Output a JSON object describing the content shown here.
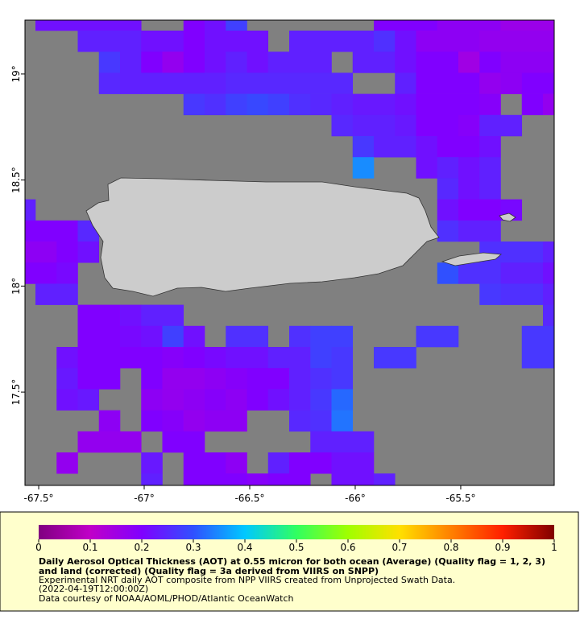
{
  "chart_data": {
    "type": "heatmap",
    "title": "Daily Aerosol Optical Thickness (AOT) at 0.55 micron for both ocean (Average) (Quality flag = 1, 2, 3) and land (corrected) (Quality flag = 3a derived from VIIRS on SNPP)",
    "notes": [
      "Experimental NRT daily AOT composite from NPP VIIRS created from Unprojected Swath Data.",
      "(2022-04-19T12:00:00Z)",
      "Data courtesy of NOAA/AOML/PHOD/Atlantic OceanWatch"
    ],
    "xlim": [
      -67.565,
      -65.057
    ],
    "ylim": [
      17.06,
      19.254
    ],
    "xticks": [
      {
        "value": -67.5,
        "label": "-67.5°"
      },
      {
        "value": -67,
        "label": "-67°"
      },
      {
        "value": -66.5,
        "label": "-66.5°"
      },
      {
        "value": -66,
        "label": "-66°"
      },
      {
        "value": -65.5,
        "label": "-65.5°"
      }
    ],
    "yticks": [
      {
        "value": 17.5,
        "label": "17.5°"
      },
      {
        "value": 18,
        "label": "18°"
      },
      {
        "value": 18.5,
        "label": "18.5°"
      },
      {
        "value": 19,
        "label": "19°"
      }
    ],
    "colorbar_lim": [
      0,
      1
    ],
    "colorbar_ticks": [
      0,
      0.1,
      0.2,
      0.3,
      0.4,
      0.5,
      0.6,
      0.7,
      0.8,
      0.9,
      1
    ],
    "colormap": [
      "#800080",
      "#c000c8",
      "#8000ff",
      "#3050ff",
      "#00c8ff",
      "#30ff60",
      "#a0ff00",
      "#ffe000",
      "#ff8000",
      "#ff2000",
      "#800000"
    ],
    "missing_color": "#808080",
    "land_color": "#cccccc",
    "grid": [
      [
        null,
        0.22,
        0.22,
        0.22,
        0.22,
        0.22,
        null,
        null,
        0.2,
        0.22,
        0.28,
        null,
        null,
        null,
        null,
        null,
        null,
        0.2,
        0.2,
        0.2,
        0.18,
        0.18,
        0.18,
        0.16,
        0.16,
        0.16
      ],
      [
        null,
        null,
        null,
        0.24,
        0.24,
        0.24,
        0.22,
        0.22,
        0.2,
        0.22,
        0.22,
        0.22,
        null,
        0.24,
        0.24,
        0.24,
        0.24,
        0.26,
        0.22,
        0.18,
        0.18,
        0.18,
        0.17,
        0.17,
        0.17,
        0.17
      ],
      [
        null,
        null,
        null,
        null,
        0.27,
        0.24,
        0.2,
        0.17,
        0.2,
        0.22,
        0.24,
        0.22,
        0.24,
        0.24,
        0.24,
        null,
        0.24,
        0.24,
        0.22,
        0.2,
        0.2,
        0.15,
        0.2,
        0.18,
        0.18,
        0.18
      ],
      [
        null,
        null,
        null,
        null,
        0.25,
        0.24,
        0.24,
        0.24,
        0.24,
        0.24,
        0.25,
        0.25,
        0.25,
        0.25,
        0.25,
        0.25,
        null,
        null,
        0.24,
        0.2,
        0.2,
        0.2,
        0.17,
        0.18,
        0.2,
        0.2
      ],
      [
        null,
        null,
        null,
        null,
        null,
        null,
        null,
        null,
        0.27,
        0.26,
        0.28,
        0.29,
        0.28,
        0.26,
        0.25,
        0.24,
        0.23,
        0.23,
        0.22,
        0.2,
        0.2,
        0.2,
        0.19,
        null,
        0.2,
        0.17
      ],
      [
        null,
        null,
        null,
        null,
        null,
        null,
        null,
        null,
        null,
        null,
        null,
        null,
        null,
        null,
        null,
        0.25,
        0.24,
        0.24,
        0.23,
        0.2,
        0.2,
        0.19,
        0.24,
        0.24,
        null,
        null
      ],
      [
        null,
        null,
        null,
        null,
        null,
        null,
        null,
        null,
        null,
        null,
        null,
        null,
        null,
        null,
        null,
        null,
        0.27,
        0.24,
        0.24,
        0.22,
        0.2,
        0.2,
        0.22,
        null,
        null,
        null
      ],
      [
        null,
        null,
        null,
        null,
        null,
        null,
        null,
        null,
        null,
        null,
        null,
        null,
        null,
        null,
        null,
        null,
        0.35,
        null,
        null,
        0.22,
        0.24,
        0.22,
        0.24,
        null,
        null,
        null
      ],
      [
        null,
        null,
        null,
        null,
        null,
        null,
        null,
        null,
        null,
        null,
        null,
        null,
        null,
        null,
        null,
        null,
        null,
        null,
        null,
        null,
        0.25,
        0.22,
        0.24,
        null,
        null,
        null
      ],
      [
        0.24,
        null,
        null,
        null,
        null,
        null,
        null,
        null,
        null,
        null,
        null,
        null,
        null,
        null,
        null,
        null,
        null,
        null,
        null,
        null,
        0.22,
        0.2,
        0.2,
        0.21,
        null,
        null
      ],
      [
        0.2,
        0.2,
        0.2,
        0.25,
        null,
        null,
        null,
        null,
        null,
        null,
        null,
        null,
        null,
        null,
        null,
        null,
        null,
        null,
        null,
        null,
        0.26,
        0.24,
        0.24,
        null,
        null,
        null
      ],
      [
        0.18,
        0.18,
        0.2,
        0.22,
        null,
        null,
        null,
        null,
        null,
        null,
        null,
        null,
        null,
        null,
        null,
        null,
        null,
        null,
        null,
        null,
        null,
        null,
        0.26,
        0.26,
        0.26,
        0.24
      ],
      [
        0.2,
        0.2,
        0.21,
        null,
        null,
        null,
        null,
        null,
        null,
        null,
        null,
        null,
        null,
        null,
        null,
        null,
        null,
        null,
        null,
        null,
        0.3,
        0.26,
        0.26,
        0.24,
        0.24,
        0.22
      ],
      [
        null,
        0.24,
        0.24,
        null,
        null,
        null,
        null,
        null,
        null,
        null,
        null,
        null,
        null,
        null,
        null,
        null,
        null,
        null,
        null,
        null,
        null,
        null,
        0.27,
        0.26,
        0.26,
        0.24
      ],
      [
        null,
        null,
        null,
        0.2,
        0.2,
        0.22,
        0.24,
        0.24,
        null,
        null,
        null,
        null,
        null,
        null,
        null,
        null,
        null,
        null,
        null,
        null,
        null,
        null,
        null,
        null,
        null,
        0.25
      ],
      [
        null,
        null,
        null,
        0.2,
        0.2,
        0.21,
        0.22,
        0.28,
        0.22,
        null,
        0.26,
        0.26,
        null,
        0.26,
        0.28,
        0.28,
        null,
        null,
        null,
        0.27,
        0.27,
        null,
        null,
        null,
        0.27,
        0.27
      ],
      [
        null,
        null,
        0.22,
        0.2,
        0.2,
        0.2,
        0.2,
        0.19,
        0.2,
        0.21,
        0.22,
        0.22,
        0.24,
        0.24,
        0.28,
        0.27,
        null,
        0.27,
        0.27,
        null,
        null,
        null,
        null,
        null,
        0.27,
        0.27
      ],
      [
        null,
        null,
        0.23,
        0.2,
        0.2,
        null,
        0.2,
        0.17,
        0.17,
        0.18,
        0.19,
        0.2,
        0.2,
        0.24,
        0.26,
        0.27,
        null,
        null,
        null,
        null,
        null,
        null,
        null,
        null,
        null,
        null
      ],
      [
        null,
        null,
        0.22,
        0.23,
        null,
        null,
        0.18,
        0.17,
        0.18,
        0.19,
        0.18,
        0.2,
        0.22,
        0.24,
        0.27,
        0.32,
        null,
        null,
        null,
        null,
        null,
        null,
        null,
        null,
        null,
        null
      ],
      [
        null,
        null,
        null,
        null,
        0.18,
        null,
        0.2,
        0.19,
        0.17,
        0.18,
        0.18,
        null,
        null,
        0.25,
        0.26,
        0.33,
        null,
        null,
        null,
        null,
        null,
        null,
        null,
        null,
        null,
        null
      ],
      [
        null,
        null,
        null,
        0.17,
        0.17,
        0.17,
        null,
        0.2,
        0.2,
        null,
        null,
        null,
        null,
        null,
        0.24,
        0.24,
        0.24,
        null,
        null,
        null,
        null,
        null,
        null,
        null,
        null,
        null
      ],
      [
        null,
        null,
        0.17,
        null,
        null,
        null,
        0.23,
        null,
        0.2,
        0.2,
        0.18,
        null,
        0.24,
        0.2,
        0.2,
        0.22,
        0.22,
        null,
        null,
        null,
        null,
        null,
        null,
        null,
        null,
        null
      ],
      [
        null,
        null,
        null,
        null,
        null,
        null,
        0.24,
        null,
        0.2,
        0.2,
        0.2,
        0.19,
        0.2,
        0.2,
        null,
        0.22,
        0.22,
        0.24,
        null,
        null,
        null,
        null,
        null,
        null,
        null,
        null
      ]
    ]
  }
}
